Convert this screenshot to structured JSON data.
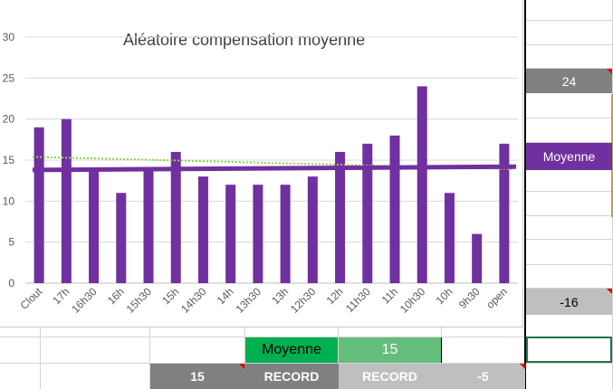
{
  "colors": {
    "bar": "#7030a0",
    "trend_dotted": "#92d050",
    "gray_dark": "#808080",
    "gray_light": "#bfbfbf",
    "green_dark": "#00b050",
    "green_light": "#63be7b",
    "purple": "#7030a0",
    "gold_border": "#c9a227",
    "selected_border": "#217346"
  },
  "chart_data": {
    "type": "bar",
    "title": "Aléatoire compensation moyenne",
    "categories": [
      "Clout",
      "17h",
      "16h30",
      "16h",
      "15h30",
      "15h",
      "14h30",
      "14h",
      "13h30",
      "13h",
      "12h30",
      "12h",
      "11h30",
      "11h",
      "10h30",
      "10h",
      "9h30",
      "open"
    ],
    "values": [
      19,
      20,
      14,
      11,
      14,
      16,
      13,
      12,
      12,
      12,
      13,
      16,
      17,
      18,
      24,
      11,
      6,
      17
    ],
    "ylim": [
      0,
      30
    ],
    "yticks": [
      "0",
      "5",
      "10",
      "15",
      "20",
      "25",
      "30"
    ],
    "grid": true,
    "moyenne_line": [
      13.8,
      14.2
    ],
    "trend_line": [
      15.4,
      13.9
    ]
  },
  "sheet": {
    "right_col": {
      "value_24": "24",
      "moyenne_label": "Moyenne",
      "value_minus16": "-16"
    },
    "row_moyenne": {
      "label": "Moyenne",
      "value": "15"
    },
    "row_record": {
      "value_15": "15",
      "record_a": "RECORD",
      "record_b": "RECORD",
      "value_minus5": "-5"
    }
  }
}
